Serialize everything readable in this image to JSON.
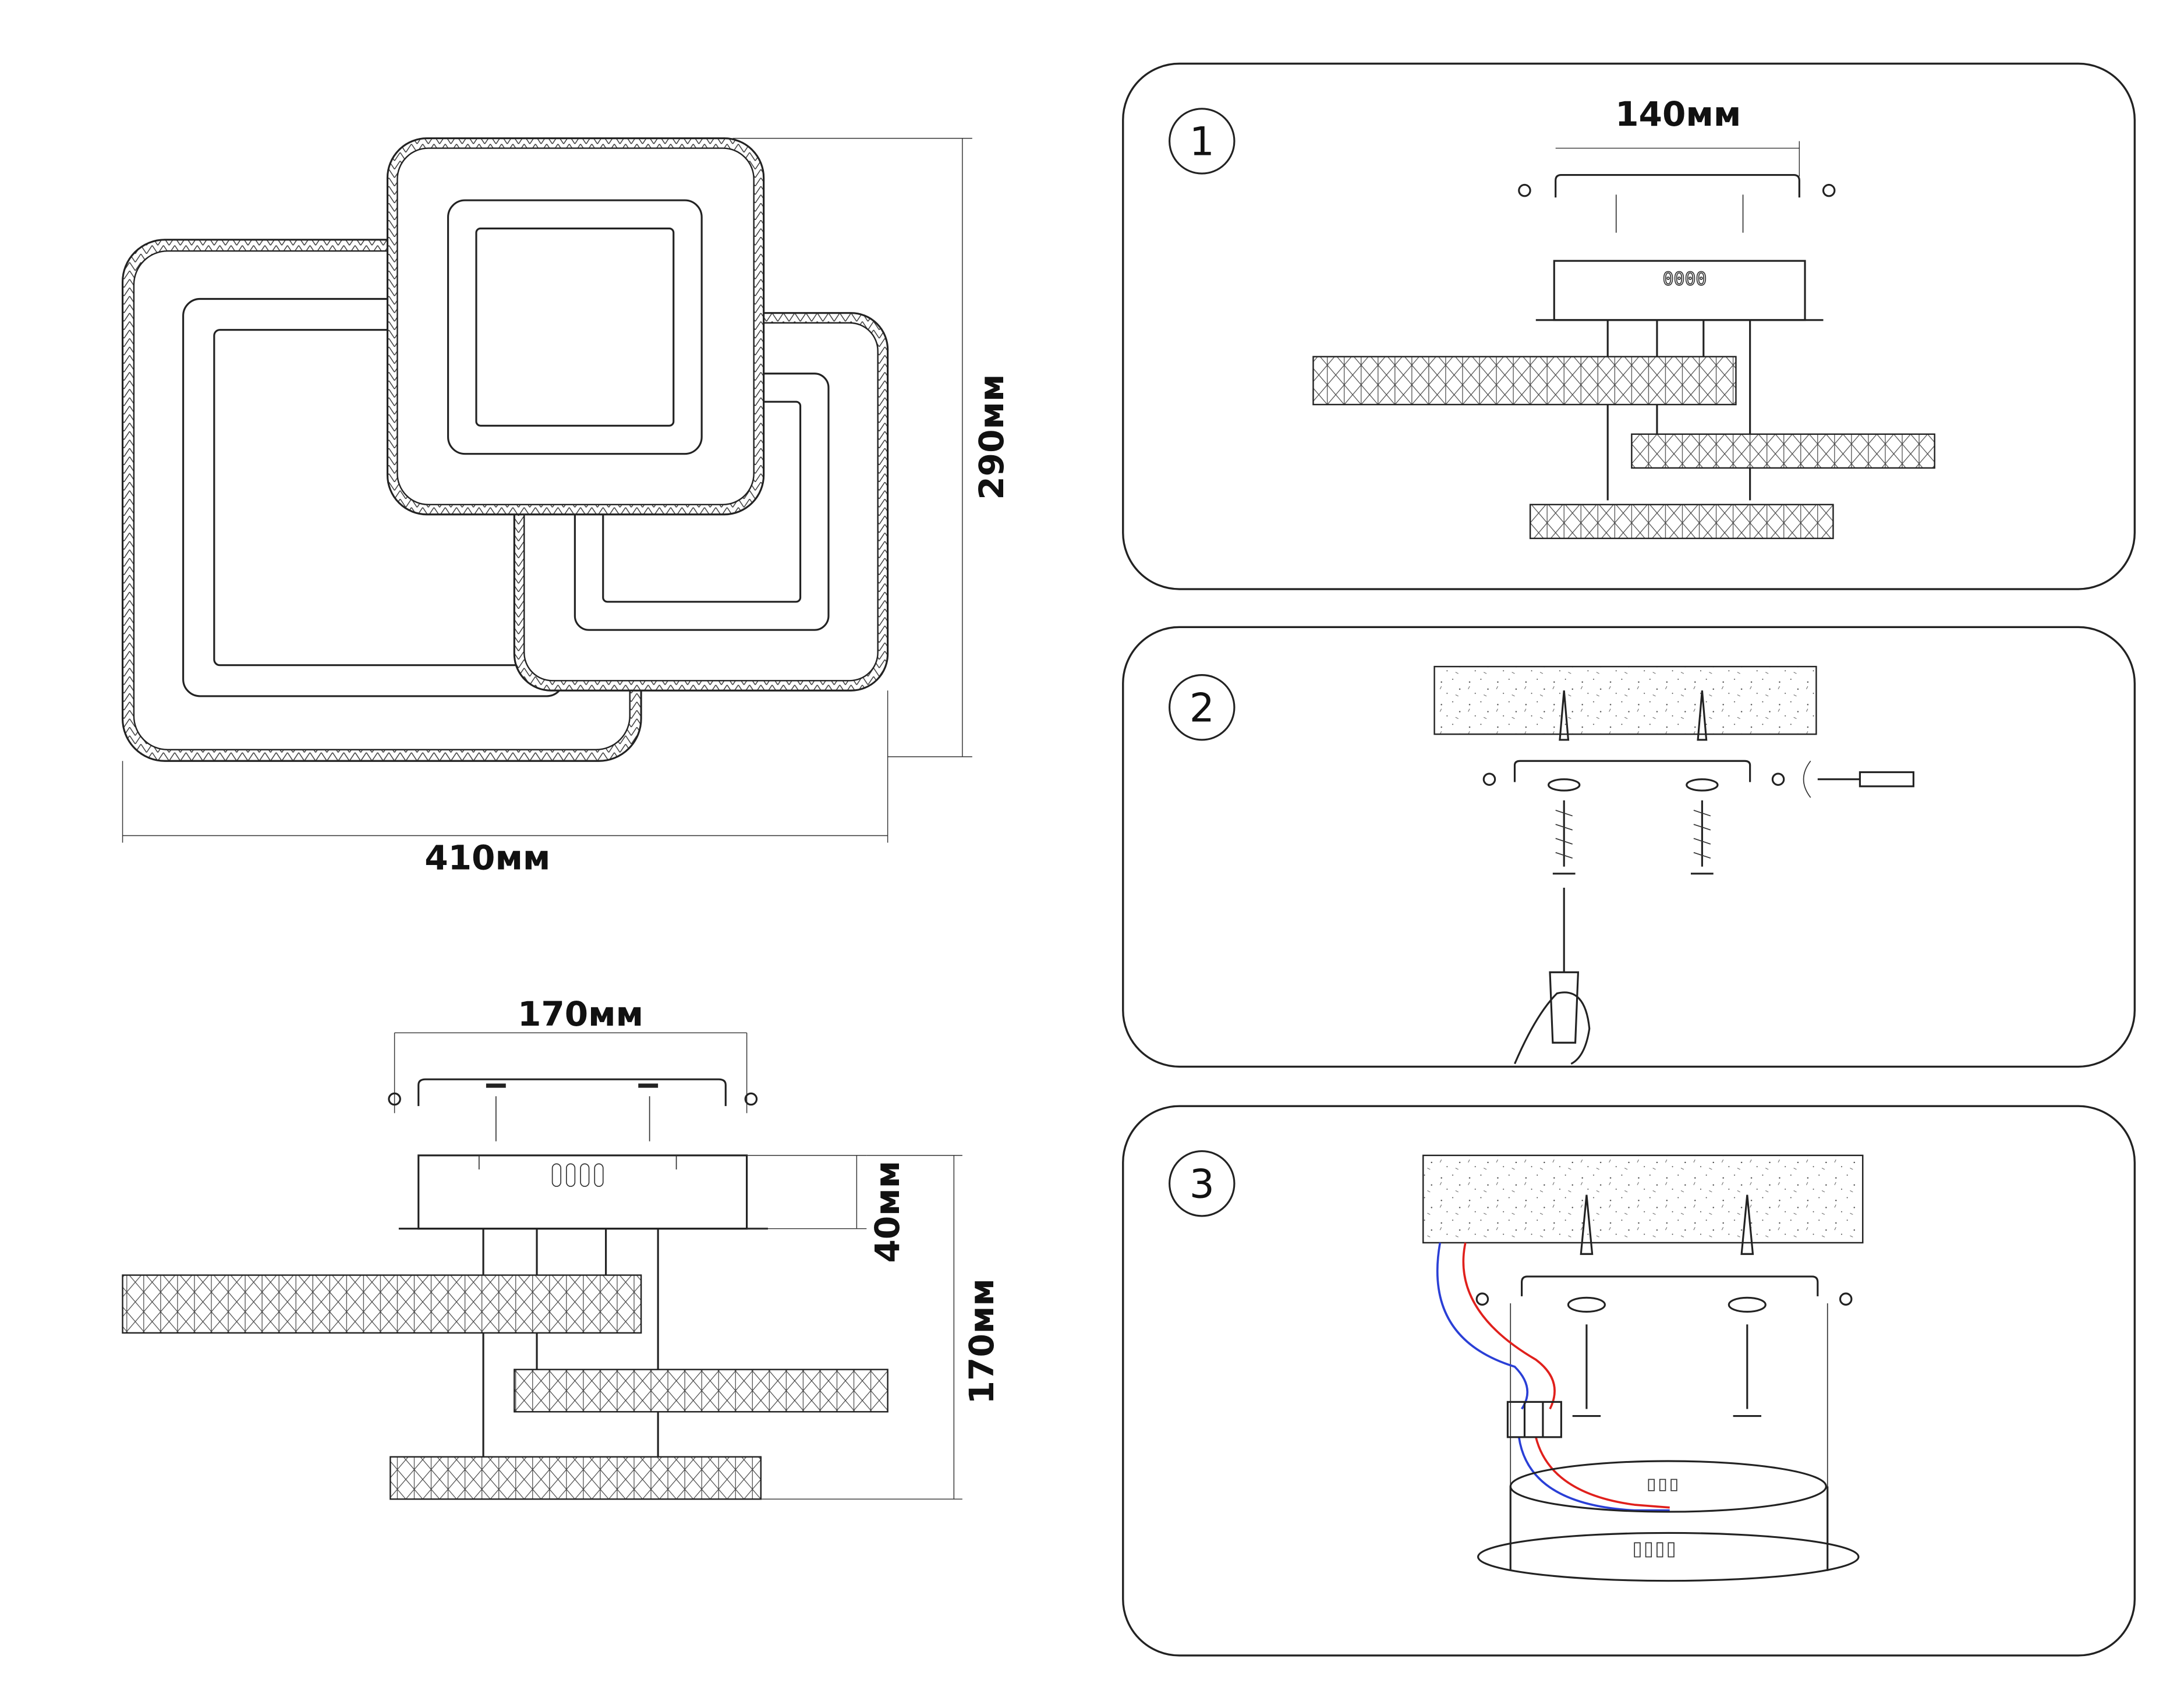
{
  "dimensions": {
    "top_view_height": "290мм",
    "top_view_width": "410мм",
    "side_bracket_width": "170мм",
    "side_box_height": "40мм",
    "side_total_height": "170мм",
    "step1_bracket_width": "140мм"
  },
  "steps": [
    {
      "number": "1"
    },
    {
      "number": "2"
    },
    {
      "number": "3"
    }
  ],
  "colors": {
    "line": "#222222",
    "live_wire": "#e0201c",
    "neutral_wire": "#2a3fd6"
  }
}
